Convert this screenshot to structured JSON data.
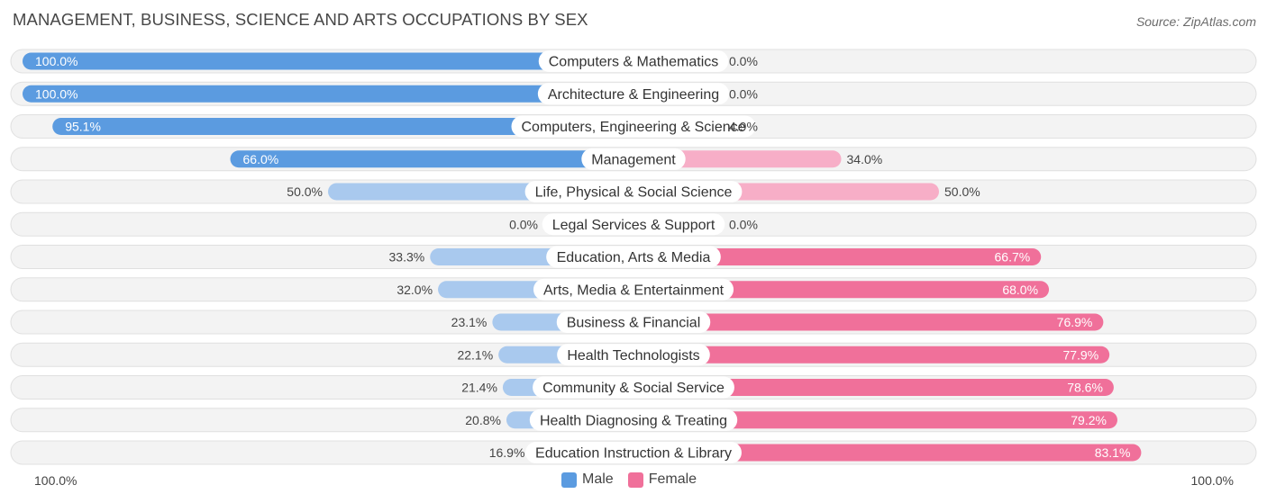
{
  "title": "MANAGEMENT, BUSINESS, SCIENCE AND ARTS OCCUPATIONS BY SEX",
  "source": "Source: ZipAtlas.com",
  "footer": {
    "left": "100.0%",
    "right": "100.0%"
  },
  "legend": {
    "male": "Male",
    "female": "Female"
  },
  "colors": {
    "male_strong": "#5b9be0",
    "male_light": "#a9c9ee",
    "female_strong": "#f0709a",
    "female_light": "#f7aec7",
    "track": "#efefef"
  },
  "chart_data": {
    "type": "bar",
    "orientation": "horizontal-diverging",
    "title": "MANAGEMENT, BUSINESS, SCIENCE AND ARTS OCCUPATIONS BY SEX",
    "xlim": [
      -100,
      100
    ],
    "categories": [
      "Computers & Mathematics",
      "Architecture & Engineering",
      "Computers, Engineering & Science",
      "Management",
      "Life, Physical & Social Science",
      "Legal Services & Support",
      "Education, Arts & Media",
      "Arts, Media & Entertainment",
      "Business & Financial",
      "Health Technologists",
      "Community & Social Service",
      "Health Diagnosing & Treating",
      "Education Instruction & Library"
    ],
    "series": [
      {
        "name": "Male",
        "values": [
          100.0,
          100.0,
          95.1,
          66.0,
          50.0,
          0.0,
          33.3,
          32.0,
          23.1,
          22.1,
          21.4,
          20.8,
          16.9
        ],
        "labels": [
          "100.0%",
          "100.0%",
          "95.1%",
          "66.0%",
          "50.0%",
          "0.0%",
          "33.3%",
          "32.0%",
          "23.1%",
          "22.1%",
          "21.4%",
          "20.8%",
          "16.9%"
        ]
      },
      {
        "name": "Female",
        "values": [
          0.0,
          0.0,
          4.9,
          34.0,
          50.0,
          0.0,
          66.7,
          68.0,
          76.9,
          77.9,
          78.6,
          79.2,
          83.1
        ],
        "labels": [
          "0.0%",
          "0.0%",
          "4.9%",
          "34.0%",
          "50.0%",
          "0.0%",
          "66.7%",
          "68.0%",
          "76.9%",
          "77.9%",
          "78.6%",
          "79.2%",
          "83.1%"
        ]
      }
    ]
  }
}
